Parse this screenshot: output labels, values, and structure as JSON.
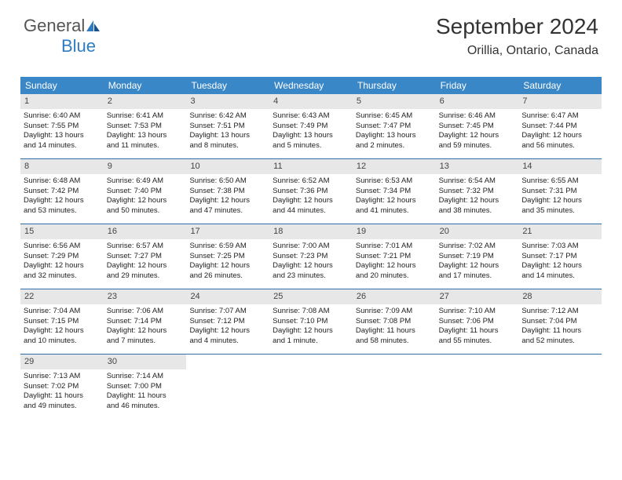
{
  "logo": {
    "text1": "General",
    "text2": "Blue"
  },
  "header": {
    "title": "September 2024",
    "location": "Orillia, Ontario, Canada"
  },
  "colors": {
    "headerBar": "#3a87c8",
    "weekBorder": "#2f6fa8",
    "dayNumBg": "#e7e7e7",
    "logoBlue": "#2f7cc0"
  },
  "dayNames": [
    "Sunday",
    "Monday",
    "Tuesday",
    "Wednesday",
    "Thursday",
    "Friday",
    "Saturday"
  ],
  "weeks": [
    [
      {
        "num": "1",
        "sunrise": "Sunrise: 6:40 AM",
        "sunset": "Sunset: 7:55 PM",
        "day1": "Daylight: 13 hours",
        "day2": "and 14 minutes."
      },
      {
        "num": "2",
        "sunrise": "Sunrise: 6:41 AM",
        "sunset": "Sunset: 7:53 PM",
        "day1": "Daylight: 13 hours",
        "day2": "and 11 minutes."
      },
      {
        "num": "3",
        "sunrise": "Sunrise: 6:42 AM",
        "sunset": "Sunset: 7:51 PM",
        "day1": "Daylight: 13 hours",
        "day2": "and 8 minutes."
      },
      {
        "num": "4",
        "sunrise": "Sunrise: 6:43 AM",
        "sunset": "Sunset: 7:49 PM",
        "day1": "Daylight: 13 hours",
        "day2": "and 5 minutes."
      },
      {
        "num": "5",
        "sunrise": "Sunrise: 6:45 AM",
        "sunset": "Sunset: 7:47 PM",
        "day1": "Daylight: 13 hours",
        "day2": "and 2 minutes."
      },
      {
        "num": "6",
        "sunrise": "Sunrise: 6:46 AM",
        "sunset": "Sunset: 7:45 PM",
        "day1": "Daylight: 12 hours",
        "day2": "and 59 minutes."
      },
      {
        "num": "7",
        "sunrise": "Sunrise: 6:47 AM",
        "sunset": "Sunset: 7:44 PM",
        "day1": "Daylight: 12 hours",
        "day2": "and 56 minutes."
      }
    ],
    [
      {
        "num": "8",
        "sunrise": "Sunrise: 6:48 AM",
        "sunset": "Sunset: 7:42 PM",
        "day1": "Daylight: 12 hours",
        "day2": "and 53 minutes."
      },
      {
        "num": "9",
        "sunrise": "Sunrise: 6:49 AM",
        "sunset": "Sunset: 7:40 PM",
        "day1": "Daylight: 12 hours",
        "day2": "and 50 minutes."
      },
      {
        "num": "10",
        "sunrise": "Sunrise: 6:50 AM",
        "sunset": "Sunset: 7:38 PM",
        "day1": "Daylight: 12 hours",
        "day2": "and 47 minutes."
      },
      {
        "num": "11",
        "sunrise": "Sunrise: 6:52 AM",
        "sunset": "Sunset: 7:36 PM",
        "day1": "Daylight: 12 hours",
        "day2": "and 44 minutes."
      },
      {
        "num": "12",
        "sunrise": "Sunrise: 6:53 AM",
        "sunset": "Sunset: 7:34 PM",
        "day1": "Daylight: 12 hours",
        "day2": "and 41 minutes."
      },
      {
        "num": "13",
        "sunrise": "Sunrise: 6:54 AM",
        "sunset": "Sunset: 7:32 PM",
        "day1": "Daylight: 12 hours",
        "day2": "and 38 minutes."
      },
      {
        "num": "14",
        "sunrise": "Sunrise: 6:55 AM",
        "sunset": "Sunset: 7:31 PM",
        "day1": "Daylight: 12 hours",
        "day2": "and 35 minutes."
      }
    ],
    [
      {
        "num": "15",
        "sunrise": "Sunrise: 6:56 AM",
        "sunset": "Sunset: 7:29 PM",
        "day1": "Daylight: 12 hours",
        "day2": "and 32 minutes."
      },
      {
        "num": "16",
        "sunrise": "Sunrise: 6:57 AM",
        "sunset": "Sunset: 7:27 PM",
        "day1": "Daylight: 12 hours",
        "day2": "and 29 minutes."
      },
      {
        "num": "17",
        "sunrise": "Sunrise: 6:59 AM",
        "sunset": "Sunset: 7:25 PM",
        "day1": "Daylight: 12 hours",
        "day2": "and 26 minutes."
      },
      {
        "num": "18",
        "sunrise": "Sunrise: 7:00 AM",
        "sunset": "Sunset: 7:23 PM",
        "day1": "Daylight: 12 hours",
        "day2": "and 23 minutes."
      },
      {
        "num": "19",
        "sunrise": "Sunrise: 7:01 AM",
        "sunset": "Sunset: 7:21 PM",
        "day1": "Daylight: 12 hours",
        "day2": "and 20 minutes."
      },
      {
        "num": "20",
        "sunrise": "Sunrise: 7:02 AM",
        "sunset": "Sunset: 7:19 PM",
        "day1": "Daylight: 12 hours",
        "day2": "and 17 minutes."
      },
      {
        "num": "21",
        "sunrise": "Sunrise: 7:03 AM",
        "sunset": "Sunset: 7:17 PM",
        "day1": "Daylight: 12 hours",
        "day2": "and 14 minutes."
      }
    ],
    [
      {
        "num": "22",
        "sunrise": "Sunrise: 7:04 AM",
        "sunset": "Sunset: 7:15 PM",
        "day1": "Daylight: 12 hours",
        "day2": "and 10 minutes."
      },
      {
        "num": "23",
        "sunrise": "Sunrise: 7:06 AM",
        "sunset": "Sunset: 7:14 PM",
        "day1": "Daylight: 12 hours",
        "day2": "and 7 minutes."
      },
      {
        "num": "24",
        "sunrise": "Sunrise: 7:07 AM",
        "sunset": "Sunset: 7:12 PM",
        "day1": "Daylight: 12 hours",
        "day2": "and 4 minutes."
      },
      {
        "num": "25",
        "sunrise": "Sunrise: 7:08 AM",
        "sunset": "Sunset: 7:10 PM",
        "day1": "Daylight: 12 hours",
        "day2": "and 1 minute."
      },
      {
        "num": "26",
        "sunrise": "Sunrise: 7:09 AM",
        "sunset": "Sunset: 7:08 PM",
        "day1": "Daylight: 11 hours",
        "day2": "and 58 minutes."
      },
      {
        "num": "27",
        "sunrise": "Sunrise: 7:10 AM",
        "sunset": "Sunset: 7:06 PM",
        "day1": "Daylight: 11 hours",
        "day2": "and 55 minutes."
      },
      {
        "num": "28",
        "sunrise": "Sunrise: 7:12 AM",
        "sunset": "Sunset: 7:04 PM",
        "day1": "Daylight: 11 hours",
        "day2": "and 52 minutes."
      }
    ],
    [
      {
        "num": "29",
        "sunrise": "Sunrise: 7:13 AM",
        "sunset": "Sunset: 7:02 PM",
        "day1": "Daylight: 11 hours",
        "day2": "and 49 minutes."
      },
      {
        "num": "30",
        "sunrise": "Sunrise: 7:14 AM",
        "sunset": "Sunset: 7:00 PM",
        "day1": "Daylight: 11 hours",
        "day2": "and 46 minutes."
      },
      {
        "empty": true
      },
      {
        "empty": true
      },
      {
        "empty": true
      },
      {
        "empty": true
      },
      {
        "empty": true
      }
    ]
  ]
}
